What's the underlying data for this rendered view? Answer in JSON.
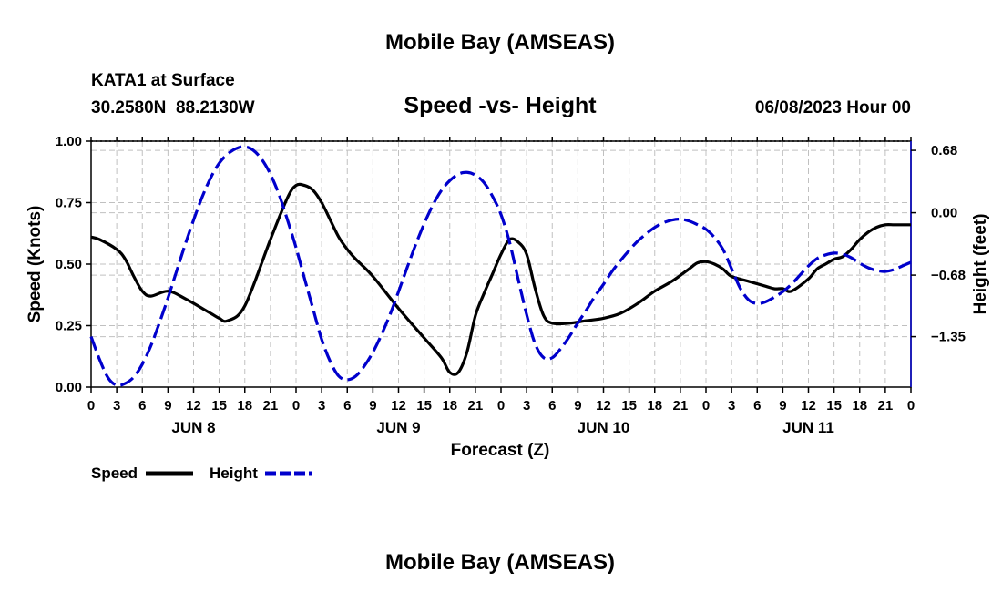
{
  "header": {
    "title": "Mobile Bay (AMSEAS)",
    "station": "KATA1 at Surface",
    "location": "30.2580N  88.2130W",
    "subtitle": "Speed -vs- Height",
    "datetime": "06/08/2023 Hour 00"
  },
  "footer": {
    "title": "Mobile Bay (AMSEAS)"
  },
  "legend": {
    "speed_label": "Speed",
    "height_label": "Height",
    "speed_color": "#000000",
    "height_color": "#0000cc"
  },
  "chart_data": {
    "type": "line",
    "title": "Speed -vs- Height",
    "xlabel": "Forecast (Z)",
    "ylabel": "Speed (Knots)",
    "y2label": "Height (feet)",
    "xlim": [
      0,
      96
    ],
    "ylim": [
      0,
      1
    ],
    "y2lim": [
      -1.9,
      0.78
    ],
    "grid": true,
    "legend_position": "bottom-left",
    "x_tick_labels": [
      "0",
      "3",
      "6",
      "9",
      "12",
      "15",
      "18",
      "21",
      "0",
      "3",
      "6",
      "9",
      "12",
      "15",
      "18",
      "21",
      "0",
      "3",
      "6",
      "9",
      "12",
      "15",
      "18",
      "21",
      "0",
      "3",
      "6",
      "9",
      "12",
      "15",
      "18",
      "21",
      "0"
    ],
    "day_labels": [
      "JUN 8",
      "JUN 9",
      "JUN 10",
      "JUN 11"
    ],
    "y_ticks": [
      "0.00",
      "0.25",
      "0.50",
      "0.75",
      "1.00"
    ],
    "y_tick_values": [
      0,
      0.25,
      0.5,
      0.75,
      1.0
    ],
    "y2_ticks": [
      "−1.35",
      "−0.68",
      "0.00",
      "0.68"
    ],
    "y2_tick_values": [
      -1.35,
      -0.68,
      0.0,
      0.68
    ],
    "series": [
      {
        "name": "Speed",
        "axis": "left",
        "color": "#000000",
        "dash": "solid",
        "x": [
          0,
          1,
          3,
          4,
          5,
          6,
          7,
          9,
          11,
          14,
          15,
          16,
          18,
          21,
          23,
          24,
          25,
          26,
          27,
          28,
          29,
          30,
          31,
          33,
          36,
          39,
          41,
          42,
          43,
          44,
          45,
          46,
          47,
          48,
          49,
          50,
          51,
          52,
          53,
          54,
          56,
          58,
          60,
          62,
          64,
          66,
          68,
          70,
          71,
          72,
          73,
          74,
          75,
          77,
          79,
          80,
          81,
          82,
          84,
          85,
          86,
          87,
          88,
          89,
          90,
          91,
          92,
          93,
          94,
          95,
          96
        ],
        "values": [
          0.61,
          0.6,
          0.56,
          0.52,
          0.45,
          0.39,
          0.37,
          0.39,
          0.36,
          0.3,
          0.28,
          0.27,
          0.33,
          0.6,
          0.77,
          0.82,
          0.82,
          0.8,
          0.75,
          0.68,
          0.61,
          0.56,
          0.52,
          0.45,
          0.32,
          0.2,
          0.12,
          0.06,
          0.06,
          0.14,
          0.29,
          0.38,
          0.46,
          0.54,
          0.6,
          0.59,
          0.54,
          0.4,
          0.29,
          0.26,
          0.26,
          0.27,
          0.28,
          0.3,
          0.34,
          0.39,
          0.43,
          0.48,
          0.505,
          0.51,
          0.5,
          0.48,
          0.45,
          0.43,
          0.41,
          0.4,
          0.4,
          0.39,
          0.44,
          0.48,
          0.5,
          0.52,
          0.53,
          0.56,
          0.6,
          0.63,
          0.65,
          0.66,
          0.66,
          0.66,
          0.66
        ]
      },
      {
        "name": "Height",
        "axis": "right",
        "color": "#0000cc",
        "dash": "dashed",
        "x": [
          0,
          1,
          2,
          3,
          4,
          5,
          6,
          7,
          8,
          9,
          10,
          11,
          12,
          13,
          14,
          15,
          16,
          17,
          18,
          19,
          20,
          21,
          22,
          23,
          24,
          25,
          26,
          27,
          28,
          29,
          30,
          31,
          32,
          33,
          34,
          35,
          36,
          37,
          38,
          39,
          40,
          41,
          42,
          43,
          44,
          45,
          46,
          47,
          48,
          49,
          50,
          51,
          52,
          53,
          54,
          55,
          56,
          57,
          58,
          59,
          60,
          61,
          62,
          63,
          64,
          65,
          66,
          67,
          68,
          69,
          70,
          71,
          72,
          73,
          74,
          75,
          76,
          77,
          78,
          79,
          80,
          81,
          82,
          83,
          84,
          85,
          86,
          87,
          88,
          89,
          90,
          91,
          92,
          93,
          94,
          95,
          96
        ],
        "values": [
          -1.35,
          -1.6,
          -1.8,
          -1.88,
          -1.86,
          -1.79,
          -1.65,
          -1.45,
          -1.2,
          -0.93,
          -0.64,
          -0.35,
          -0.08,
          0.17,
          0.38,
          0.54,
          0.64,
          0.7,
          0.72,
          0.68,
          0.58,
          0.42,
          0.2,
          -0.08,
          -0.38,
          -0.72,
          -1.05,
          -1.38,
          -1.62,
          -1.78,
          -1.82,
          -1.78,
          -1.67,
          -1.52,
          -1.33,
          -1.11,
          -0.86,
          -0.6,
          -0.35,
          -0.12,
          0.08,
          0.24,
          0.35,
          0.42,
          0.44,
          0.41,
          0.33,
          0.18,
          -0.02,
          -0.32,
          -0.72,
          -1.11,
          -1.43,
          -1.58,
          -1.58,
          -1.48,
          -1.35,
          -1.2,
          -1.06,
          -0.91,
          -0.78,
          -0.64,
          -0.52,
          -0.41,
          -0.31,
          -0.23,
          -0.16,
          -0.11,
          -0.08,
          -0.07,
          -0.09,
          -0.13,
          -0.18,
          -0.27,
          -0.4,
          -0.61,
          -0.82,
          -0.95,
          -0.99,
          -0.97,
          -0.92,
          -0.86,
          -0.78,
          -0.68,
          -0.58,
          -0.5,
          -0.46,
          -0.44,
          -0.45,
          -0.49,
          -0.55,
          -0.6,
          -0.63,
          -0.64,
          -0.62,
          -0.58,
          -0.54
        ]
      }
    ]
  }
}
